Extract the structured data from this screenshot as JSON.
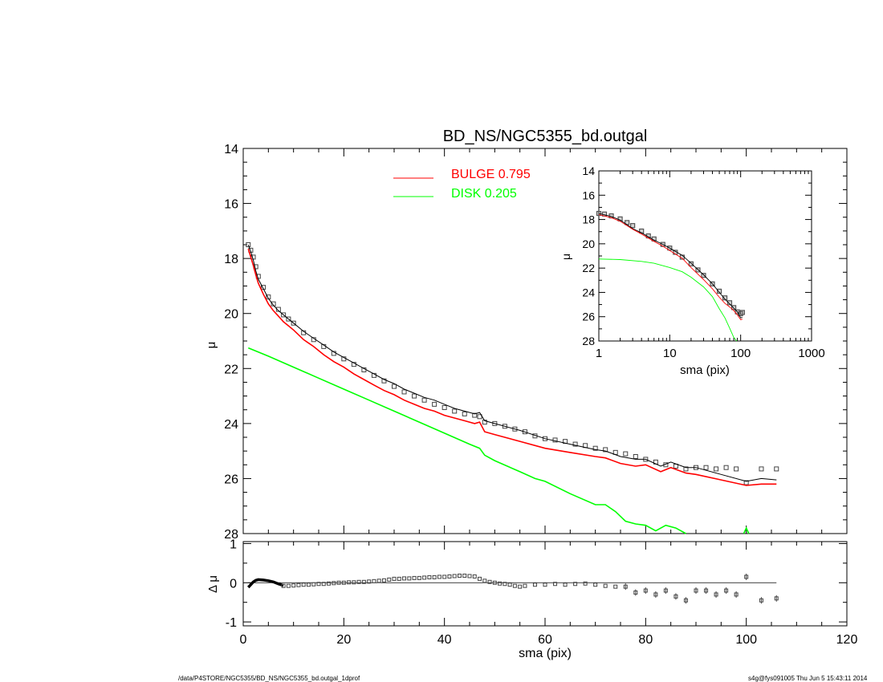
{
  "colors": {
    "axis": "#000000",
    "model": "#000000",
    "bulge": "#ff0000",
    "disk": "#00ff00",
    "points": "#444444",
    "background": "#ffffff"
  },
  "footer": {
    "left": "/data/P4STORE/NGC5355/BD_NS/NGC5355_bd.outgal_1dprof",
    "right": "s4g@fys091005  Thu Jun  5 15:43:11 2014"
  },
  "chart_data": [
    {
      "id": "main",
      "type": "line",
      "title": "BD_NS/NGC5355_bd.outgal",
      "xlabel": "",
      "ylabel": "μ",
      "xlim": [
        0,
        120
      ],
      "ylim": [
        28,
        14
      ],
      "y_inverted": true,
      "yticks": [
        "14",
        "16",
        "18",
        "20",
        "22",
        "24",
        "26",
        "28"
      ],
      "legend": [
        {
          "label": "BULGE  0.795",
          "color": "#ff0000"
        },
        {
          "label": "DISK  0.205",
          "color": "#00ff00"
        }
      ],
      "series": [
        {
          "name": "data",
          "style": "squares",
          "x": [
            1,
            1.5,
            2,
            2.5,
            3,
            4,
            5,
            6,
            7,
            8,
            9,
            10,
            12,
            14,
            16,
            18,
            20,
            22,
            24,
            26,
            28,
            30,
            32,
            34,
            36,
            38,
            40,
            42,
            44,
            46,
            47,
            48,
            50,
            52,
            54,
            56,
            58,
            60,
            62,
            64,
            66,
            68,
            70,
            72,
            74,
            76,
            78,
            80,
            82,
            84,
            86,
            88,
            90,
            92,
            94,
            96,
            98,
            100,
            103,
            106
          ],
          "y": [
            17.5,
            17.7,
            17.95,
            18.3,
            18.65,
            19.05,
            19.4,
            19.65,
            19.85,
            20.05,
            20.2,
            20.35,
            20.7,
            20.95,
            21.2,
            21.45,
            21.65,
            21.85,
            22.05,
            22.25,
            22.45,
            22.65,
            22.85,
            23.0,
            23.15,
            23.3,
            23.42,
            23.55,
            23.65,
            23.7,
            23.75,
            23.95,
            24.0,
            24.1,
            24.2,
            24.3,
            24.45,
            24.55,
            24.6,
            24.65,
            24.75,
            24.8,
            24.9,
            24.95,
            25.05,
            25.1,
            25.2,
            25.3,
            25.4,
            25.5,
            25.55,
            25.65,
            25.6,
            25.6,
            25.65,
            25.6,
            25.65,
            26.15,
            25.65,
            25.65
          ]
        },
        {
          "name": "model",
          "style": "line",
          "color": "#000000",
          "x": [
            1,
            1.5,
            2,
            2.5,
            3,
            4,
            5,
            6,
            7,
            8,
            9,
            10,
            12,
            14,
            16,
            18,
            20,
            22,
            24,
            26,
            28,
            30,
            32,
            34,
            36,
            38,
            40,
            42,
            44,
            46,
            47,
            48,
            50,
            55,
            60,
            65,
            70,
            72,
            75,
            78,
            80,
            83,
            85,
            88,
            90,
            95,
            100,
            103,
            106
          ],
          "y": [
            17.5,
            17.75,
            18.05,
            18.45,
            18.75,
            19.1,
            19.45,
            19.7,
            19.9,
            20.05,
            20.2,
            20.35,
            20.65,
            20.9,
            21.15,
            21.4,
            21.6,
            21.8,
            22.0,
            22.2,
            22.4,
            22.55,
            22.75,
            22.9,
            23.05,
            23.15,
            23.3,
            23.45,
            23.55,
            23.65,
            23.6,
            23.9,
            24.0,
            24.25,
            24.55,
            24.75,
            24.95,
            25.0,
            25.2,
            25.3,
            25.3,
            25.55,
            25.4,
            25.6,
            25.6,
            25.85,
            26.1,
            26.0,
            26.05
          ]
        },
        {
          "name": "BULGE",
          "style": "line",
          "color": "#ff0000",
          "x": [
            1,
            1.5,
            2,
            2.5,
            3,
            4,
            5,
            6,
            7,
            8,
            9,
            10,
            12,
            14,
            16,
            18,
            20,
            22,
            24,
            26,
            28,
            30,
            32,
            34,
            36,
            38,
            40,
            42,
            44,
            46,
            47,
            48,
            50,
            55,
            60,
            65,
            70,
            72,
            75,
            78,
            80,
            83,
            85,
            88,
            90,
            95,
            100,
            103,
            106
          ],
          "y": [
            17.65,
            17.95,
            18.25,
            18.6,
            18.9,
            19.3,
            19.65,
            19.9,
            20.1,
            20.3,
            20.45,
            20.6,
            20.95,
            21.2,
            21.5,
            21.75,
            21.95,
            22.2,
            22.4,
            22.6,
            22.8,
            22.95,
            23.15,
            23.3,
            23.45,
            23.55,
            23.7,
            23.8,
            23.9,
            24.0,
            23.95,
            24.3,
            24.4,
            24.65,
            24.9,
            25.05,
            25.2,
            25.25,
            25.45,
            25.55,
            25.5,
            25.75,
            25.6,
            25.8,
            25.85,
            26.05,
            26.25,
            26.2,
            26.2
          ]
        },
        {
          "name": "DISK",
          "style": "line",
          "color": "#00ff00",
          "x": [
            1,
            5,
            10,
            15,
            20,
            25,
            30,
            35,
            40,
            45,
            47,
            48,
            50,
            55,
            58,
            60,
            65,
            70,
            72,
            74,
            76,
            78,
            80,
            82,
            84,
            86,
            88
          ],
          "y": [
            21.25,
            21.55,
            21.95,
            22.35,
            22.75,
            23.15,
            23.55,
            23.95,
            24.35,
            24.75,
            24.9,
            25.15,
            25.35,
            25.75,
            26.0,
            26.1,
            26.55,
            26.95,
            26.95,
            27.2,
            27.55,
            27.65,
            27.7,
            27.9,
            27.7,
            27.8,
            28.0
          ]
        },
        {
          "name": "DISK-spike",
          "style": "line",
          "color": "#00ff00",
          "x": [
            99.5,
            100,
            100.5
          ],
          "y": [
            28.0,
            27.8,
            28.0
          ]
        }
      ]
    },
    {
      "id": "residual",
      "type": "scatter",
      "xlabel": "sma (pix)",
      "ylabel": "Δ μ",
      "xlim": [
        0,
        120
      ],
      "ylim": [
        -1.1,
        1.05
      ],
      "xticks": [
        "0",
        "20",
        "40",
        "60",
        "80",
        "100",
        "120"
      ],
      "yticks": [
        "1",
        "0",
        "-1"
      ],
      "series": [
        {
          "name": "residual-curve",
          "style": "thick-line",
          "x": [
            1,
            1.5,
            2,
            2.5,
            3,
            4,
            5,
            6,
            7,
            8
          ],
          "y": [
            -0.12,
            -0.05,
            0.02,
            0.06,
            0.08,
            0.07,
            0.05,
            0.02,
            -0.03,
            -0.07
          ]
        },
        {
          "name": "residual",
          "style": "squares",
          "x": [
            8,
            9,
            10,
            11,
            12,
            13,
            14,
            15,
            16,
            17,
            18,
            19,
            20,
            21,
            22,
            23,
            24,
            25,
            26,
            27,
            28,
            29,
            30,
            31,
            32,
            33,
            34,
            35,
            36,
            37,
            38,
            39,
            40,
            41,
            42,
            43,
            44,
            45,
            46,
            47,
            48,
            49,
            50,
            51,
            52,
            53,
            54,
            55,
            56,
            58,
            60,
            62,
            64,
            66,
            68,
            70,
            72,
            74,
            76,
            78,
            80,
            82,
            84,
            86,
            88,
            90,
            92,
            94,
            96,
            98,
            100,
            103,
            106
          ],
          "y": [
            -0.08,
            -0.08,
            -0.07,
            -0.06,
            -0.05,
            -0.05,
            -0.04,
            -0.03,
            -0.03,
            -0.02,
            -0.01,
            0,
            0,
            0.01,
            0.01,
            0.02,
            0.02,
            0.03,
            0.04,
            0.05,
            0.06,
            0.08,
            0.1,
            0.1,
            0.11,
            0.11,
            0.12,
            0.12,
            0.13,
            0.14,
            0.14,
            0.15,
            0.15,
            0.16,
            0.17,
            0.18,
            0.18,
            0.17,
            0.16,
            0.1,
            0.05,
            0.02,
            0.0,
            -0.02,
            -0.03,
            -0.05,
            -0.08,
            -0.1,
            -0.08,
            -0.05,
            -0.05,
            -0.03,
            -0.05,
            -0.03,
            -0.02,
            -0.05,
            -0.08,
            -0.1,
            -0.1,
            -0.25,
            -0.2,
            -0.3,
            -0.2,
            -0.35,
            -0.45,
            -0.2,
            -0.2,
            -0.3,
            -0.2,
            -0.3,
            0.15,
            -0.45,
            -0.4
          ]
        }
      ]
    },
    {
      "id": "inset",
      "type": "line",
      "xscale": "log",
      "xlabel": "sma (pix)",
      "ylabel": "μ",
      "xlim": [
        1,
        1000
      ],
      "ylim": [
        28,
        14
      ],
      "y_inverted": true,
      "xticks": [
        "1",
        "10",
        "100",
        "1000"
      ],
      "yticks": [
        "14",
        "16",
        "18",
        "20",
        "22",
        "24",
        "26",
        "28"
      ],
      "series": [
        {
          "name": "data",
          "style": "squares",
          "x": [
            1,
            1.2,
            1.5,
            2,
            2.5,
            3,
            4,
            5,
            6,
            8,
            10,
            12,
            15,
            20,
            25,
            30,
            40,
            50,
            60,
            70,
            80,
            90,
            100,
            106
          ],
          "y": [
            17.5,
            17.55,
            17.7,
            17.95,
            18.25,
            18.5,
            18.95,
            19.35,
            19.6,
            20.05,
            20.35,
            20.7,
            21.1,
            21.65,
            22.15,
            22.6,
            23.3,
            23.9,
            24.45,
            24.85,
            25.25,
            25.6,
            25.75,
            25.65
          ]
        },
        {
          "name": "model",
          "style": "line",
          "color": "#000000",
          "x": [
            1,
            1.5,
            2,
            3,
            4,
            6,
            8,
            10,
            15,
            20,
            30,
            40,
            50,
            60,
            70,
            80,
            90,
            100,
            106
          ],
          "y": [
            17.5,
            17.75,
            18.05,
            18.75,
            19.1,
            19.7,
            20.05,
            20.35,
            20.95,
            21.6,
            22.55,
            23.3,
            24.0,
            24.55,
            24.95,
            25.3,
            25.6,
            26.1,
            26.05
          ]
        },
        {
          "name": "BULGE",
          "style": "line",
          "color": "#ff0000",
          "x": [
            1,
            1.5,
            2,
            3,
            4,
            6,
            8,
            10,
            15,
            20,
            30,
            40,
            50,
            60,
            70,
            80,
            90,
            100,
            106
          ],
          "y": [
            17.6,
            17.85,
            18.15,
            18.8,
            19.2,
            19.8,
            20.2,
            20.55,
            21.2,
            21.95,
            22.95,
            23.7,
            24.4,
            24.9,
            25.2,
            25.5,
            25.85,
            26.25,
            26.2
          ]
        },
        {
          "name": "DISK",
          "style": "line",
          "color": "#00ff00",
          "x": [
            1,
            2,
            4,
            6,
            10,
            15,
            20,
            30,
            40,
            50,
            60,
            70,
            80,
            88
          ],
          "y": [
            21.25,
            21.3,
            21.45,
            21.6,
            21.95,
            22.3,
            22.75,
            23.55,
            24.35,
            25.35,
            26.1,
            26.95,
            27.7,
            28.0
          ]
        }
      ]
    }
  ]
}
